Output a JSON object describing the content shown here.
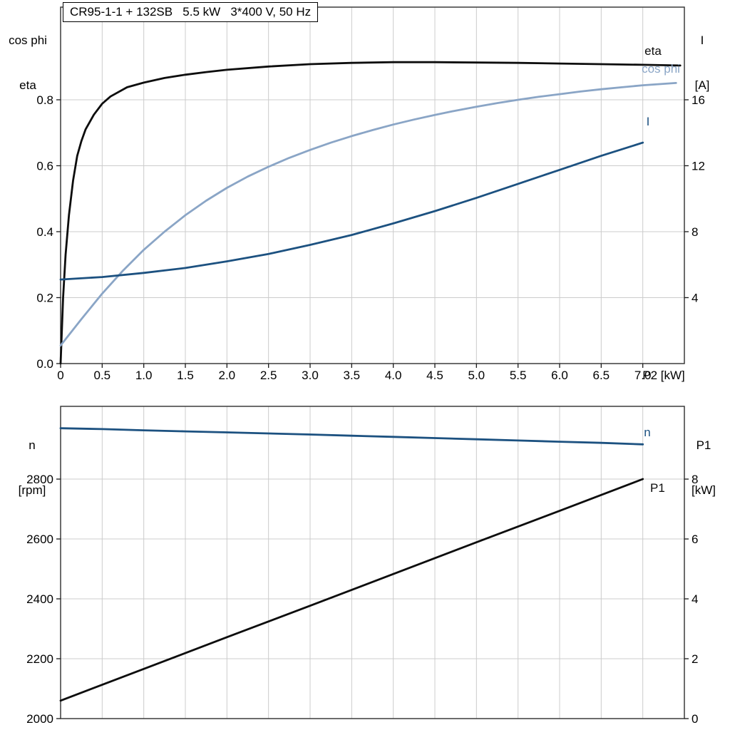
{
  "title": "CR95-1-1 + 132SB   5.5 kW   3*400 V, 50 Hz",
  "axes": {
    "top_left": [
      "cos phi",
      "eta"
    ],
    "top_right": [
      "I",
      "[A]"
    ],
    "bottom_left": [
      "n",
      "[rpm]"
    ],
    "bottom_right": [
      "P1",
      "[kW]"
    ]
  },
  "colors": {
    "grid": "#cccccc",
    "frame": "#2e2e2e",
    "tick": "#1a1a1a",
    "text": "#000000",
    "eta": "#0d0d0d",
    "cos_phi": "#8aa5c6",
    "current": "#1c5180",
    "speed": "#1c5180",
    "p1": "#0d0d0d"
  },
  "chart_data": [
    {
      "type": "line",
      "title": "CR95-1-1 + 132SB   5.5 kW   3*400 V, 50 Hz",
      "xlabel": "P2 [kW]",
      "x_suffix": "P2 [kW]",
      "x_range": [
        0,
        7.5
      ],
      "x_ticks": [
        0,
        0.5,
        1,
        1.5,
        2,
        2.5,
        3,
        3.5,
        4,
        4.5,
        5,
        5.5,
        6,
        6.5,
        7
      ],
      "x_tick_labels": [
        "0",
        "0.5",
        "1.0",
        "1.5",
        "2.0",
        "2.5",
        "3.0",
        "3.5",
        "4.0",
        "4.5",
        "5.0",
        "5.5",
        "6.0",
        "6.5",
        "7.0"
      ],
      "grid": true,
      "legend_position": "end-of-line",
      "left_axis": {
        "label": "cos phi / eta",
        "range": [
          0,
          1.081
        ],
        "ticks": [
          0,
          0.2,
          0.4,
          0.6,
          0.8
        ],
        "tick_labels": [
          "0.0",
          "0.2",
          "0.4",
          "0.6",
          "0.8"
        ]
      },
      "right_axis": {
        "label": "I [A]",
        "range": [
          0,
          21.62
        ],
        "ticks": [
          4,
          8,
          12,
          16
        ],
        "tick_labels": [
          "4",
          "8",
          "12",
          "16"
        ]
      },
      "series": [
        {
          "name": "eta",
          "axis": "left",
          "color": "#0d0d0d",
          "x": [
            0,
            0.03,
            0.06,
            0.1,
            0.15,
            0.2,
            0.25,
            0.3,
            0.4,
            0.5,
            0.6,
            0.8,
            1,
            1.25,
            1.5,
            1.75,
            2,
            2.5,
            3,
            3.5,
            4,
            4.5,
            5,
            5.5,
            6,
            6.5,
            7,
            7.45
          ],
          "y": [
            0,
            0.2,
            0.33,
            0.45,
            0.555,
            0.63,
            0.675,
            0.71,
            0.755,
            0.788,
            0.81,
            0.838,
            0.852,
            0.866,
            0.876,
            0.884,
            0.891,
            0.901,
            0.908,
            0.912,
            0.914,
            0.914,
            0.913,
            0.912,
            0.91,
            0.908,
            0.906,
            0.904
          ]
        },
        {
          "name": "cos phi",
          "axis": "left",
          "color": "#8aa5c6",
          "x": [
            0,
            0.25,
            0.5,
            0.75,
            1,
            1.25,
            1.5,
            1.75,
            2,
            2.25,
            2.5,
            2.75,
            3,
            3.25,
            3.5,
            3.75,
            4,
            4.25,
            4.5,
            4.75,
            5,
            5.25,
            5.5,
            5.75,
            6,
            6.25,
            6.5,
            6.75,
            7,
            7.4
          ],
          "y": [
            0.055,
            0.135,
            0.212,
            0.282,
            0.345,
            0.4,
            0.45,
            0.494,
            0.533,
            0.567,
            0.597,
            0.624,
            0.648,
            0.67,
            0.69,
            0.708,
            0.725,
            0.74,
            0.754,
            0.767,
            0.779,
            0.79,
            0.8,
            0.809,
            0.817,
            0.825,
            0.832,
            0.838,
            0.844,
            0.851
          ]
        },
        {
          "name": "I",
          "axis": "right",
          "color": "#1c5180",
          "x": [
            0,
            0.5,
            1,
            1.5,
            2,
            2.5,
            3,
            3.5,
            4,
            4.5,
            5,
            5.5,
            6,
            6.5,
            7
          ],
          "y": [
            5.1,
            5.25,
            5.5,
            5.8,
            6.2,
            6.65,
            7.2,
            7.8,
            8.5,
            9.25,
            10.05,
            10.9,
            11.75,
            12.6,
            13.4
          ]
        }
      ]
    },
    {
      "type": "line",
      "title": "",
      "xlabel": "",
      "x_range": [
        0,
        7.5
      ],
      "x_ticks": [
        0,
        0.5,
        1,
        1.5,
        2,
        2.5,
        3,
        3.5,
        4,
        4.5,
        5,
        5.5,
        6,
        6.5,
        7
      ],
      "x_tick_labels": [],
      "grid": true,
      "legend_position": "end-of-line",
      "left_axis": {
        "label": "n [rpm]",
        "range": [
          2000,
          3043
        ],
        "ticks": [
          2000,
          2200,
          2400,
          2600,
          2800
        ],
        "tick_labels": [
          "2000",
          "2200",
          "2400",
          "2600",
          "2800"
        ]
      },
      "right_axis": {
        "label": "P1 [kW]",
        "range": [
          0,
          10.43
        ],
        "ticks": [
          0,
          2,
          4,
          6,
          8
        ],
        "tick_labels": [
          "0",
          "2",
          "4",
          "6",
          "8"
        ]
      },
      "series": [
        {
          "name": "n",
          "axis": "left",
          "color": "#1c5180",
          "x": [
            0,
            0.5,
            1,
            1.5,
            2,
            2.5,
            3,
            3.5,
            4,
            4.5,
            5,
            5.5,
            6,
            6.5,
            7
          ],
          "y": [
            2970,
            2967,
            2963,
            2959.5,
            2956,
            2952.5,
            2949,
            2945,
            2941,
            2937,
            2933,
            2929,
            2925,
            2921,
            2916
          ]
        },
        {
          "name": "P1",
          "axis": "right",
          "color": "#0d0d0d",
          "x": [
            0,
            1,
            2,
            3,
            4,
            5,
            6,
            7
          ],
          "y": [
            0.6,
            1.66,
            2.72,
            3.77,
            4.83,
            5.89,
            6.94,
            8.0
          ]
        }
      ]
    }
  ]
}
